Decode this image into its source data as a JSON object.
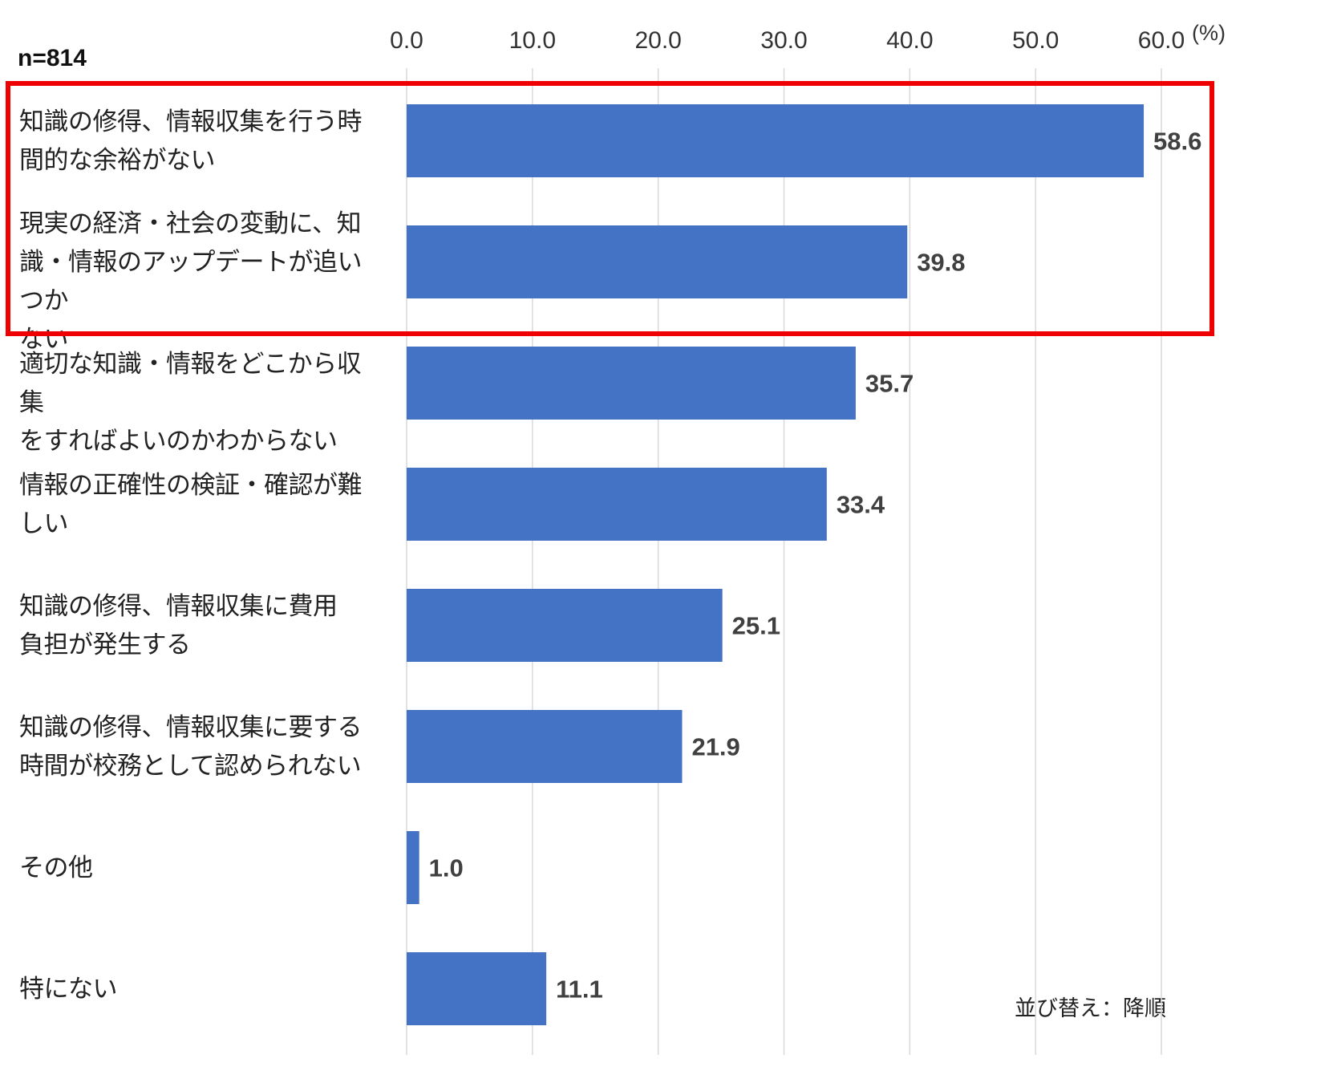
{
  "chart_data": {
    "type": "bar",
    "orientation": "horizontal",
    "sample_size_label": "n=814",
    "unit_label": "(%)",
    "sort_note": "並び替え：降順",
    "xlim": [
      0,
      60
    ],
    "x_ticks": [
      "0.0",
      "10.0",
      "20.0",
      "30.0",
      "40.0",
      "50.0",
      "60.0"
    ],
    "grid": "vertical",
    "bar_color": "#4472C4",
    "highlight_color": "#EE0000",
    "highlighted_categories": [
      0,
      1
    ],
    "categories": [
      "知識の修得、情報収集を行う時\n間的な余裕がない",
      "現実の経済・社会の変動に、知\n識・情報のアップデートが追いつか\nない",
      "適切な知識・情報をどこから収集\nをすればよいのかわからない",
      "情報の正確性の検証・確認が難\nしい",
      "知識の修得、情報収集に費用\n負担が発生する",
      "知識の修得、情報収集に要する\n時間が校務として認められない",
      "その他",
      "特にない"
    ],
    "values": [
      58.6,
      39.8,
      35.7,
      33.4,
      25.1,
      21.9,
      1.0,
      11.1
    ],
    "data_labels": [
      "58.6",
      "39.8",
      "35.7",
      "33.4",
      "25.1",
      "21.9",
      "1.0",
      "11.1"
    ]
  }
}
